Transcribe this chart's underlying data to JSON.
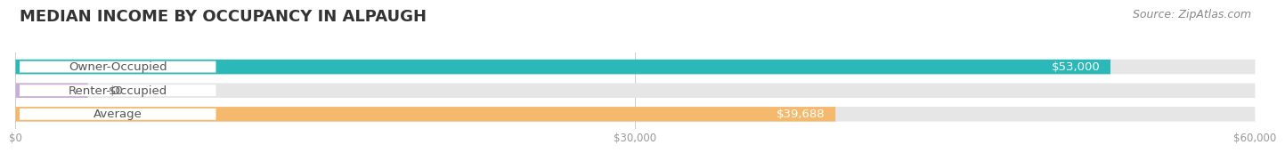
{
  "title": "MEDIAN INCOME BY OCCUPANCY IN ALPAUGH",
  "source": "Source: ZipAtlas.com",
  "categories": [
    "Owner-Occupied",
    "Renter-Occupied",
    "Average"
  ],
  "values": [
    53000,
    0,
    39688
  ],
  "bar_colors": [
    "#2ab8b8",
    "#c9aed6",
    "#f5b96e"
  ],
  "bar_bg_color": "#e6e6e6",
  "value_labels": [
    "$53,000",
    "$0",
    "$39,688"
  ],
  "xlim": [
    0,
    60000
  ],
  "xticks": [
    0,
    30000,
    60000
  ],
  "xtick_labels": [
    "$0",
    "$30,000",
    "$60,000"
  ],
  "title_fontsize": 13,
  "source_fontsize": 9,
  "label_fontsize": 9.5,
  "bar_height": 0.62,
  "background_color": "#ffffff",
  "renter_stub": 3500
}
